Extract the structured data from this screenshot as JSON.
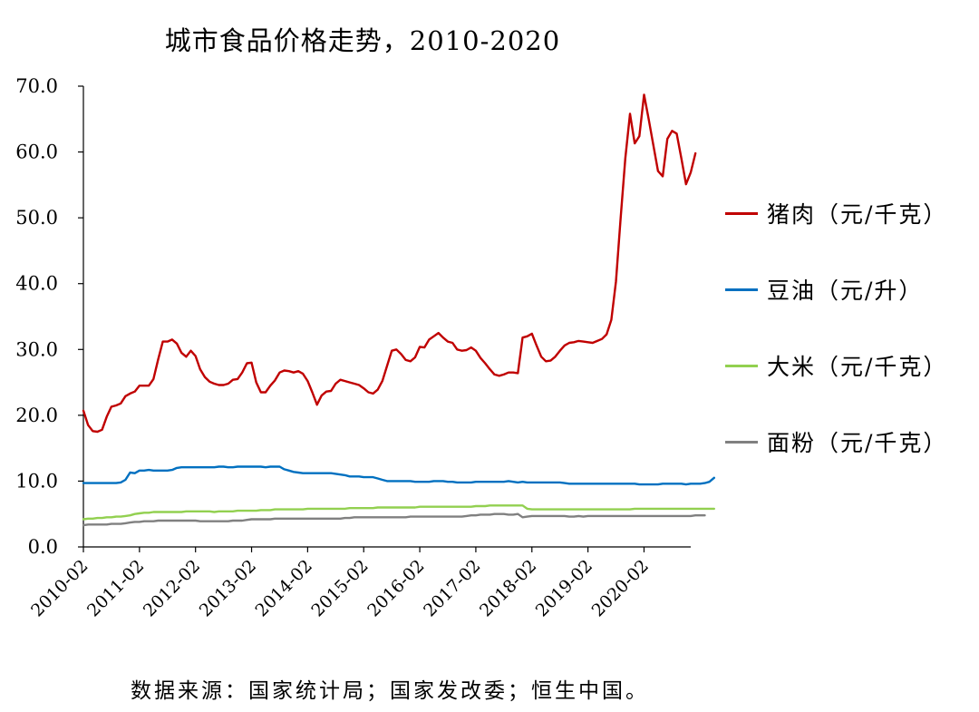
{
  "chart_data": {
    "type": "line",
    "title": "城市食品价格走势，2010-2020",
    "source": "数据来源：国家统计局；国家发改委；恒生中国。",
    "ylim": [
      0,
      70
    ],
    "y_ticks": [
      "0.0",
      "10.0",
      "20.0",
      "30.0",
      "40.0",
      "50.0",
      "60.0",
      "70.0"
    ],
    "x_tick_labels": [
      "2010-02",
      "2011-02",
      "2012-02",
      "2013-02",
      "2014-02",
      "2015-02",
      "2016-02",
      "2017-02",
      "2018-02",
      "2019-02",
      "2020-02"
    ],
    "x_start": "2010-02",
    "x_end": "2020-12",
    "legend_position": "right",
    "grid": false,
    "series": [
      {
        "name": "猪肉（元/千克）",
        "color": "#c00000",
        "values": [
          20.7,
          18.5,
          17.6,
          17.5,
          17.8,
          19.8,
          21.3,
          21.5,
          21.8,
          22.9,
          23.3,
          23.6,
          24.5,
          24.5,
          24.5,
          25.5,
          28.5,
          31.2,
          31.2,
          31.5,
          30.9,
          29.5,
          28.9,
          29.8,
          29.0,
          27.0,
          25.8,
          25.1,
          24.8,
          24.6,
          24.6,
          24.8,
          25.4,
          25.5,
          26.5,
          27.9,
          28.0,
          25.0,
          23.5,
          23.5,
          24.5,
          25.3,
          26.5,
          26.8,
          26.7,
          26.5,
          26.7,
          26.3,
          25.2,
          23.5,
          21.6,
          23.0,
          23.6,
          23.7,
          24.8,
          25.4,
          25.2,
          25.0,
          24.8,
          24.6,
          24.1,
          23.5,
          23.3,
          23.9,
          25.2,
          27.5,
          29.8,
          30.0,
          29.3,
          28.4,
          28.2,
          28.8,
          30.4,
          30.3,
          31.5,
          32.0,
          32.5,
          31.8,
          31.2,
          31.0,
          30.0,
          29.8,
          29.9,
          30.3,
          29.8,
          28.7,
          27.9,
          27.0,
          26.2,
          26.0,
          26.2,
          26.5,
          26.5,
          26.4,
          31.8,
          32.0,
          32.4,
          30.6,
          28.9,
          28.2,
          28.3,
          28.9,
          29.8,
          30.6,
          31.0,
          31.1,
          31.3,
          31.2,
          31.1,
          31.0,
          31.3,
          31.6,
          32.3,
          34.5,
          40.3,
          50.0,
          59.0,
          65.8,
          61.3,
          62.4,
          68.7,
          65.0,
          61.0,
          57.1,
          56.3,
          62.0,
          63.2,
          62.8,
          59.0,
          55.1,
          56.9,
          59.8
        ]
      },
      {
        "name": "豆油（元/升）",
        "color": "#0070c0",
        "values": [
          9.7,
          9.7,
          9.7,
          9.7,
          9.7,
          9.7,
          9.7,
          9.7,
          9.8,
          10.2,
          11.3,
          11.2,
          11.6,
          11.6,
          11.7,
          11.6,
          11.6,
          11.6,
          11.6,
          11.7,
          12.0,
          12.1,
          12.1,
          12.1,
          12.1,
          12.1,
          12.1,
          12.1,
          12.1,
          12.2,
          12.2,
          12.1,
          12.1,
          12.2,
          12.2,
          12.2,
          12.2,
          12.2,
          12.2,
          12.1,
          12.2,
          12.2,
          12.2,
          11.8,
          11.6,
          11.4,
          11.3,
          11.2,
          11.2,
          11.2,
          11.2,
          11.2,
          11.2,
          11.2,
          11.1,
          11.0,
          10.9,
          10.7,
          10.7,
          10.7,
          10.6,
          10.6,
          10.6,
          10.4,
          10.2,
          10.0,
          10.0,
          10.0,
          10.0,
          10.0,
          10.0,
          9.9,
          9.9,
          9.9,
          9.9,
          10.0,
          10.0,
          10.0,
          9.9,
          9.9,
          9.8,
          9.8,
          9.8,
          9.8,
          9.9,
          9.9,
          9.9,
          9.9,
          9.9,
          9.9,
          9.9,
          10.0,
          9.9,
          9.8,
          9.9,
          9.8,
          9.8,
          9.8,
          9.8,
          9.8,
          9.8,
          9.8,
          9.8,
          9.7,
          9.6,
          9.6,
          9.6,
          9.6,
          9.6,
          9.6,
          9.6,
          9.6,
          9.6,
          9.6,
          9.6,
          9.6,
          9.6,
          9.6,
          9.6,
          9.5,
          9.5,
          9.5,
          9.5,
          9.5,
          9.6,
          9.6,
          9.6,
          9.6,
          9.6,
          9.5,
          9.6,
          9.6,
          9.6,
          9.7,
          9.9,
          10.5
        ]
      },
      {
        "name": "大米（元/千克）",
        "color": "#92d050",
        "values": [
          4.2,
          4.3,
          4.3,
          4.4,
          4.4,
          4.5,
          4.5,
          4.6,
          4.6,
          4.7,
          4.8,
          5.0,
          5.1,
          5.2,
          5.2,
          5.3,
          5.3,
          5.3,
          5.3,
          5.3,
          5.3,
          5.3,
          5.4,
          5.4,
          5.4,
          5.4,
          5.4,
          5.4,
          5.3,
          5.4,
          5.4,
          5.4,
          5.4,
          5.5,
          5.5,
          5.5,
          5.5,
          5.5,
          5.6,
          5.6,
          5.6,
          5.7,
          5.7,
          5.7,
          5.7,
          5.7,
          5.7,
          5.7,
          5.8,
          5.8,
          5.8,
          5.8,
          5.8,
          5.8,
          5.8,
          5.8,
          5.8,
          5.9,
          5.9,
          5.9,
          5.9,
          5.9,
          5.9,
          6.0,
          6.0,
          6.0,
          6.0,
          6.0,
          6.0,
          6.0,
          6.0,
          6.0,
          6.1,
          6.1,
          6.1,
          6.1,
          6.1,
          6.1,
          6.1,
          6.1,
          6.1,
          6.1,
          6.1,
          6.1,
          6.2,
          6.2,
          6.2,
          6.3,
          6.3,
          6.3,
          6.3,
          6.3,
          6.3,
          6.3,
          6.3,
          5.8,
          5.7,
          5.7,
          5.7,
          5.7,
          5.7,
          5.7,
          5.7,
          5.7,
          5.7,
          5.7,
          5.7,
          5.7,
          5.7,
          5.7,
          5.7,
          5.7,
          5.7,
          5.7,
          5.7,
          5.7,
          5.7,
          5.7,
          5.8,
          5.8,
          5.8,
          5.8,
          5.8,
          5.8,
          5.8,
          5.8,
          5.8,
          5.8,
          5.8,
          5.8,
          5.8,
          5.8,
          5.8,
          5.8,
          5.8,
          5.8
        ]
      },
      {
        "name": "面粉（元/千克）",
        "color": "#808080",
        "values": [
          3.3,
          3.4,
          3.4,
          3.4,
          3.4,
          3.4,
          3.5,
          3.5,
          3.5,
          3.6,
          3.7,
          3.8,
          3.8,
          3.9,
          3.9,
          3.9,
          4.0,
          4.0,
          4.0,
          4.0,
          4.0,
          4.0,
          4.0,
          4.0,
          4.0,
          3.9,
          3.9,
          3.9,
          3.9,
          3.9,
          3.9,
          3.9,
          4.0,
          4.0,
          4.0,
          4.1,
          4.2,
          4.2,
          4.2,
          4.2,
          4.2,
          4.3,
          4.3,
          4.3,
          4.3,
          4.3,
          4.3,
          4.3,
          4.3,
          4.3,
          4.3,
          4.3,
          4.3,
          4.3,
          4.3,
          4.3,
          4.4,
          4.4,
          4.5,
          4.5,
          4.5,
          4.5,
          4.5,
          4.5,
          4.5,
          4.5,
          4.5,
          4.5,
          4.5,
          4.5,
          4.6,
          4.6,
          4.6,
          4.6,
          4.6,
          4.6,
          4.6,
          4.6,
          4.6,
          4.6,
          4.6,
          4.6,
          4.7,
          4.8,
          4.8,
          4.9,
          4.9,
          4.9,
          5.0,
          5.0,
          5.0,
          4.9,
          4.9,
          5.0,
          4.5,
          4.6,
          4.7,
          4.7,
          4.7,
          4.7,
          4.7,
          4.7,
          4.7,
          4.7,
          4.6,
          4.6,
          4.7,
          4.6,
          4.7,
          4.7,
          4.7,
          4.7,
          4.7,
          4.7,
          4.7,
          4.7,
          4.7,
          4.7,
          4.7,
          4.7,
          4.7,
          4.7,
          4.7,
          4.7,
          4.7,
          4.7,
          4.7,
          4.7,
          4.7,
          4.7,
          4.7,
          4.8,
          4.8,
          4.8
        ]
      }
    ]
  }
}
